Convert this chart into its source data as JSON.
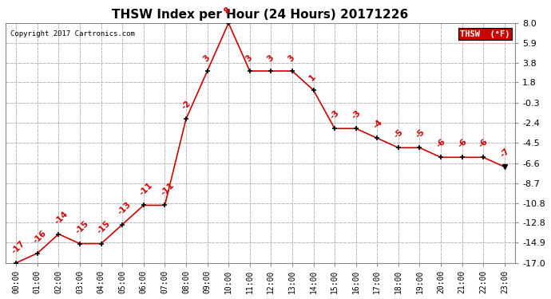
{
  "title": "THSW Index per Hour (24 Hours) 20171226",
  "copyright": "Copyright 2017 Cartronics.com",
  "legend_label": "THSW  (°F)",
  "hours": [
    0,
    1,
    2,
    3,
    4,
    5,
    6,
    7,
    8,
    9,
    10,
    11,
    12,
    13,
    14,
    15,
    16,
    17,
    18,
    19,
    20,
    21,
    22,
    23
  ],
  "values": [
    -17,
    -16,
    -14,
    -15,
    -15,
    -13,
    -11,
    -11,
    -2,
    3,
    8,
    3,
    3,
    3,
    1,
    -3,
    -3,
    -4,
    -5,
    -5,
    -6,
    -6,
    -6,
    -7
  ],
  "ylim": [
    -17.0,
    8.0
  ],
  "yticks": [
    8.0,
    5.9,
    3.8,
    1.8,
    -0.3,
    -2.4,
    -4.5,
    -6.6,
    -8.7,
    -10.8,
    -12.8,
    -14.9,
    -17.0
  ],
  "line_color": "#cc0000",
  "marker_color": "#000000",
  "background_color": "#ffffff",
  "grid_color": "#bbbbbb",
  "title_fontsize": 11,
  "legend_bg": "#cc0000",
  "legend_text_color": "#ffffff"
}
